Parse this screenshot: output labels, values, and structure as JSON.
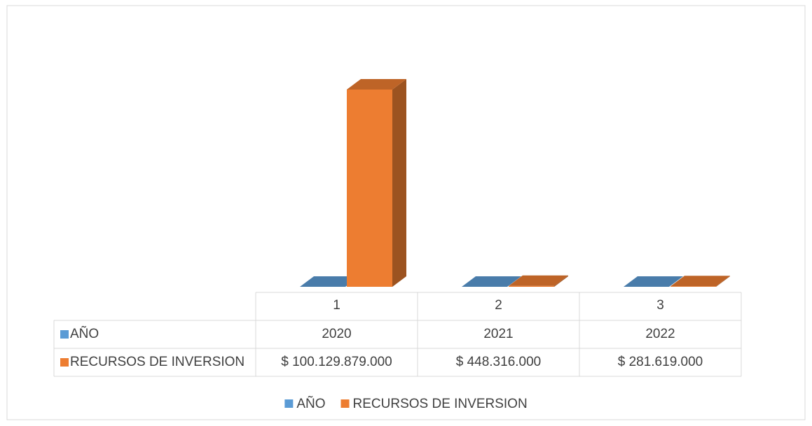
{
  "chart_data": {
    "type": "bar3d",
    "categories": [
      "1",
      "2",
      "3"
    ],
    "series": [
      {
        "name": "AÑO",
        "color": "#5b9bd5",
        "values": [
          2020,
          2021,
          2022
        ]
      },
      {
        "name": "RECURSOS DE INVERSION",
        "color": "#ed7d31",
        "values": [
          100129879000,
          448316000,
          281619000
        ],
        "value_labels": [
          "$ 100.129.879.000",
          "$ 448.316.000",
          "$ 281.619.000"
        ]
      }
    ],
    "ylim": [
      0,
      120000000000
    ]
  }
}
